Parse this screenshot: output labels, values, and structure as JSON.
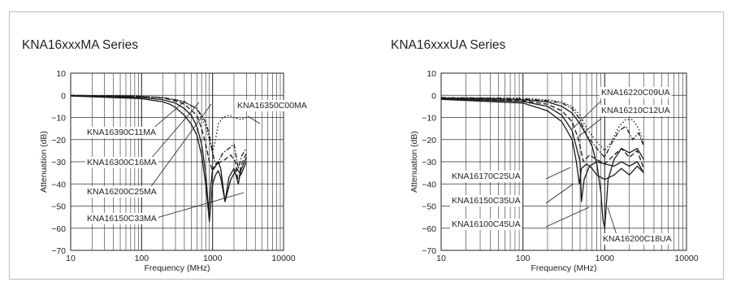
{
  "chart_data": [
    {
      "type": "line",
      "title": "KNA16xxxMA Series",
      "xlabel": "Frequency (MHz)",
      "ylabel": "Attenuation (dB)",
      "xscale": "log",
      "xlim": [
        10,
        10000
      ],
      "ylim": [
        -70,
        10
      ],
      "xticks": [
        "10",
        "100",
        "1000",
        "10000"
      ],
      "yticks": [
        "10",
        "0",
        "−10",
        "−20",
        "−30",
        "−40",
        "−50",
        "−60",
        "−70"
      ],
      "grid": true,
      "series": [
        {
          "name": "KNA16350C00MA",
          "style": "dotted",
          "x": [
            10,
            100,
            200,
            300,
            400,
            600,
            800,
            900,
            1000,
            1100,
            1200,
            1400,
            1700,
            2000,
            2500,
            3000
          ],
          "y": [
            0,
            -0.5,
            -1,
            -2,
            -3,
            -6,
            -14,
            -20,
            -26,
            -20,
            -13,
            -10,
            -9,
            -10,
            -11,
            -10
          ]
        },
        {
          "name": "KNA16390C11MA",
          "style": "dash-dot",
          "x": [
            10,
            100,
            200,
            300,
            400,
            600,
            800,
            900,
            1000,
            1100,
            1200,
            1400,
            1700,
            2000,
            2300,
            2600,
            3000
          ],
          "y": [
            0,
            -0.5,
            -1,
            -2,
            -3,
            -6,
            -12,
            -18,
            -26,
            -31,
            -30,
            -26,
            -24,
            -22,
            -33,
            -27,
            -24
          ]
        },
        {
          "name": "KNA16300C16MA",
          "style": "dashed",
          "x": [
            10,
            100,
            200,
            300,
            400,
            600,
            700,
            800,
            900,
            1000,
            1100,
            1300,
            1500,
            1800,
            2100,
            2300,
            2500,
            3000
          ],
          "y": [
            0,
            -0.5,
            -1.2,
            -2.5,
            -4,
            -9,
            -15,
            -22,
            -30,
            -34,
            -32,
            -30,
            -29,
            -27,
            -30,
            -40,
            -32,
            -26
          ]
        },
        {
          "name": "KNA16200C25MA",
          "style": "solid",
          "x": [
            10,
            100,
            200,
            300,
            400,
            500,
            600,
            700,
            800,
            880,
            950,
            1000,
            1100,
            1200,
            1300,
            1500,
            1700,
            2000,
            2300,
            2500,
            3000
          ],
          "y": [
            -0.2,
            -1,
            -2,
            -3.5,
            -6,
            -9,
            -14,
            -22,
            -35,
            -52,
            -40,
            -33,
            -32,
            -30,
            -33,
            -48,
            -37,
            -33,
            -40,
            -34,
            -28
          ]
        },
        {
          "name": "KNA16150C33MA",
          "style": "solid",
          "x": [
            10,
            100,
            200,
            250,
            300,
            400,
            500,
            600,
            700,
            800,
            870,
            900,
            1000,
            1100,
            1200,
            1300,
            1500,
            1800,
            2200,
            2500,
            3000
          ],
          "y": [
            -0.3,
            -1.5,
            -3,
            -4,
            -5.5,
            -9,
            -13,
            -18,
            -27,
            -40,
            -52,
            -57,
            -40,
            -36,
            -34,
            -37,
            -48,
            -38,
            -33,
            -36,
            -30
          ]
        }
      ],
      "annotations": [
        "KNA16350C00MA",
        "KNA16390C11MA",
        "KNA16300C16MA",
        "KNA16200C25MA",
        "KNA16150C33MA"
      ]
    },
    {
      "type": "line",
      "title": "KNA16xxxUA Series",
      "xlabel": "Frequency (MHz)",
      "ylabel": "Attenuation (dB)",
      "xscale": "log",
      "xlim": [
        10,
        10000
      ],
      "ylim": [
        -70,
        10
      ],
      "xticks": [
        "10",
        "100",
        "1000",
        "10000"
      ],
      "yticks": [
        "10",
        "0",
        "−10",
        "−20",
        "−30",
        "−40",
        "−50",
        "−60",
        "−70"
      ],
      "grid": true,
      "series": [
        {
          "name": "KNA16220C09UA",
          "style": "dotted",
          "x": [
            10,
            100,
            200,
            300,
            400,
            500,
            600,
            800,
            1000,
            1200,
            1500,
            1800,
            2200,
            2600,
            3000
          ],
          "y": [
            -1,
            -1.3,
            -2,
            -3,
            -5,
            -9,
            -15,
            -21,
            -25,
            -21,
            -14,
            -11,
            -11,
            -15,
            -22
          ]
        },
        {
          "name": "KNA16210C12UA",
          "style": "dash-dot",
          "x": [
            10,
            100,
            200,
            300,
            400,
            500,
            600,
            800,
            1000,
            1200,
            1500,
            1800,
            2200,
            2600,
            3000
          ],
          "y": [
            -1,
            -1.5,
            -2.5,
            -3.5,
            -6,
            -11,
            -18,
            -24,
            -28,
            -22,
            -16,
            -14,
            -20,
            -17,
            -23
          ]
        },
        {
          "name": "KNA16200C18UA",
          "style": "solid",
          "x": [
            10,
            100,
            200,
            300,
            400,
            500,
            600,
            700,
            800,
            900,
            950,
            1000,
            1100,
            1300,
            1600,
            2000,
            2500,
            3000
          ],
          "y": [
            -1.2,
            -2,
            -3,
            -5,
            -8,
            -13,
            -18,
            -23,
            -31,
            -44,
            -56,
            -60,
            -38,
            -29,
            -24,
            -26,
            -24,
            -29
          ]
        },
        {
          "name": "KNA16170C25UA",
          "style": "dashed",
          "x": [
            10,
            100,
            200,
            300,
            400,
            480,
            550,
            650,
            800,
            1000,
            1300,
            1600,
            2000,
            2500,
            3000
          ],
          "y": [
            -1.5,
            -2.5,
            -4,
            -7,
            -12,
            -20,
            -30,
            -27,
            -29,
            -31,
            -27,
            -24,
            -28,
            -25,
            -33
          ]
        },
        {
          "name": "KNA16150C35UA",
          "style": "solid",
          "x": [
            10,
            100,
            200,
            300,
            400,
            500,
            520,
            560,
            650,
            800,
            1000,
            1300,
            1600,
            2000,
            2500,
            3000
          ],
          "y": [
            -1.5,
            -2.8,
            -5,
            -9,
            -16,
            -30,
            -48,
            -38,
            -32,
            -30,
            -31,
            -32,
            -30,
            -32,
            -30,
            -35
          ]
        },
        {
          "name": "KNA16100C45UA",
          "style": "solid",
          "x": [
            10,
            100,
            200,
            300,
            400,
            450,
            490,
            520,
            600,
            700,
            800,
            1000,
            1300,
            1600,
            2000,
            2500,
            3000
          ],
          "y": [
            -1.8,
            -3.5,
            -7,
            -12,
            -20,
            -30,
            -40,
            -33,
            -31,
            -33,
            -36,
            -38,
            -36,
            -33,
            -36,
            -32,
            -35
          ]
        }
      ],
      "annotations": [
        "KNA16220C09UA",
        "KNA16210C12UA",
        "KNA16170C25UA",
        "KNA16150C35UA",
        "KNA16100C45UA",
        "KNA16200C18UA"
      ]
    }
  ]
}
